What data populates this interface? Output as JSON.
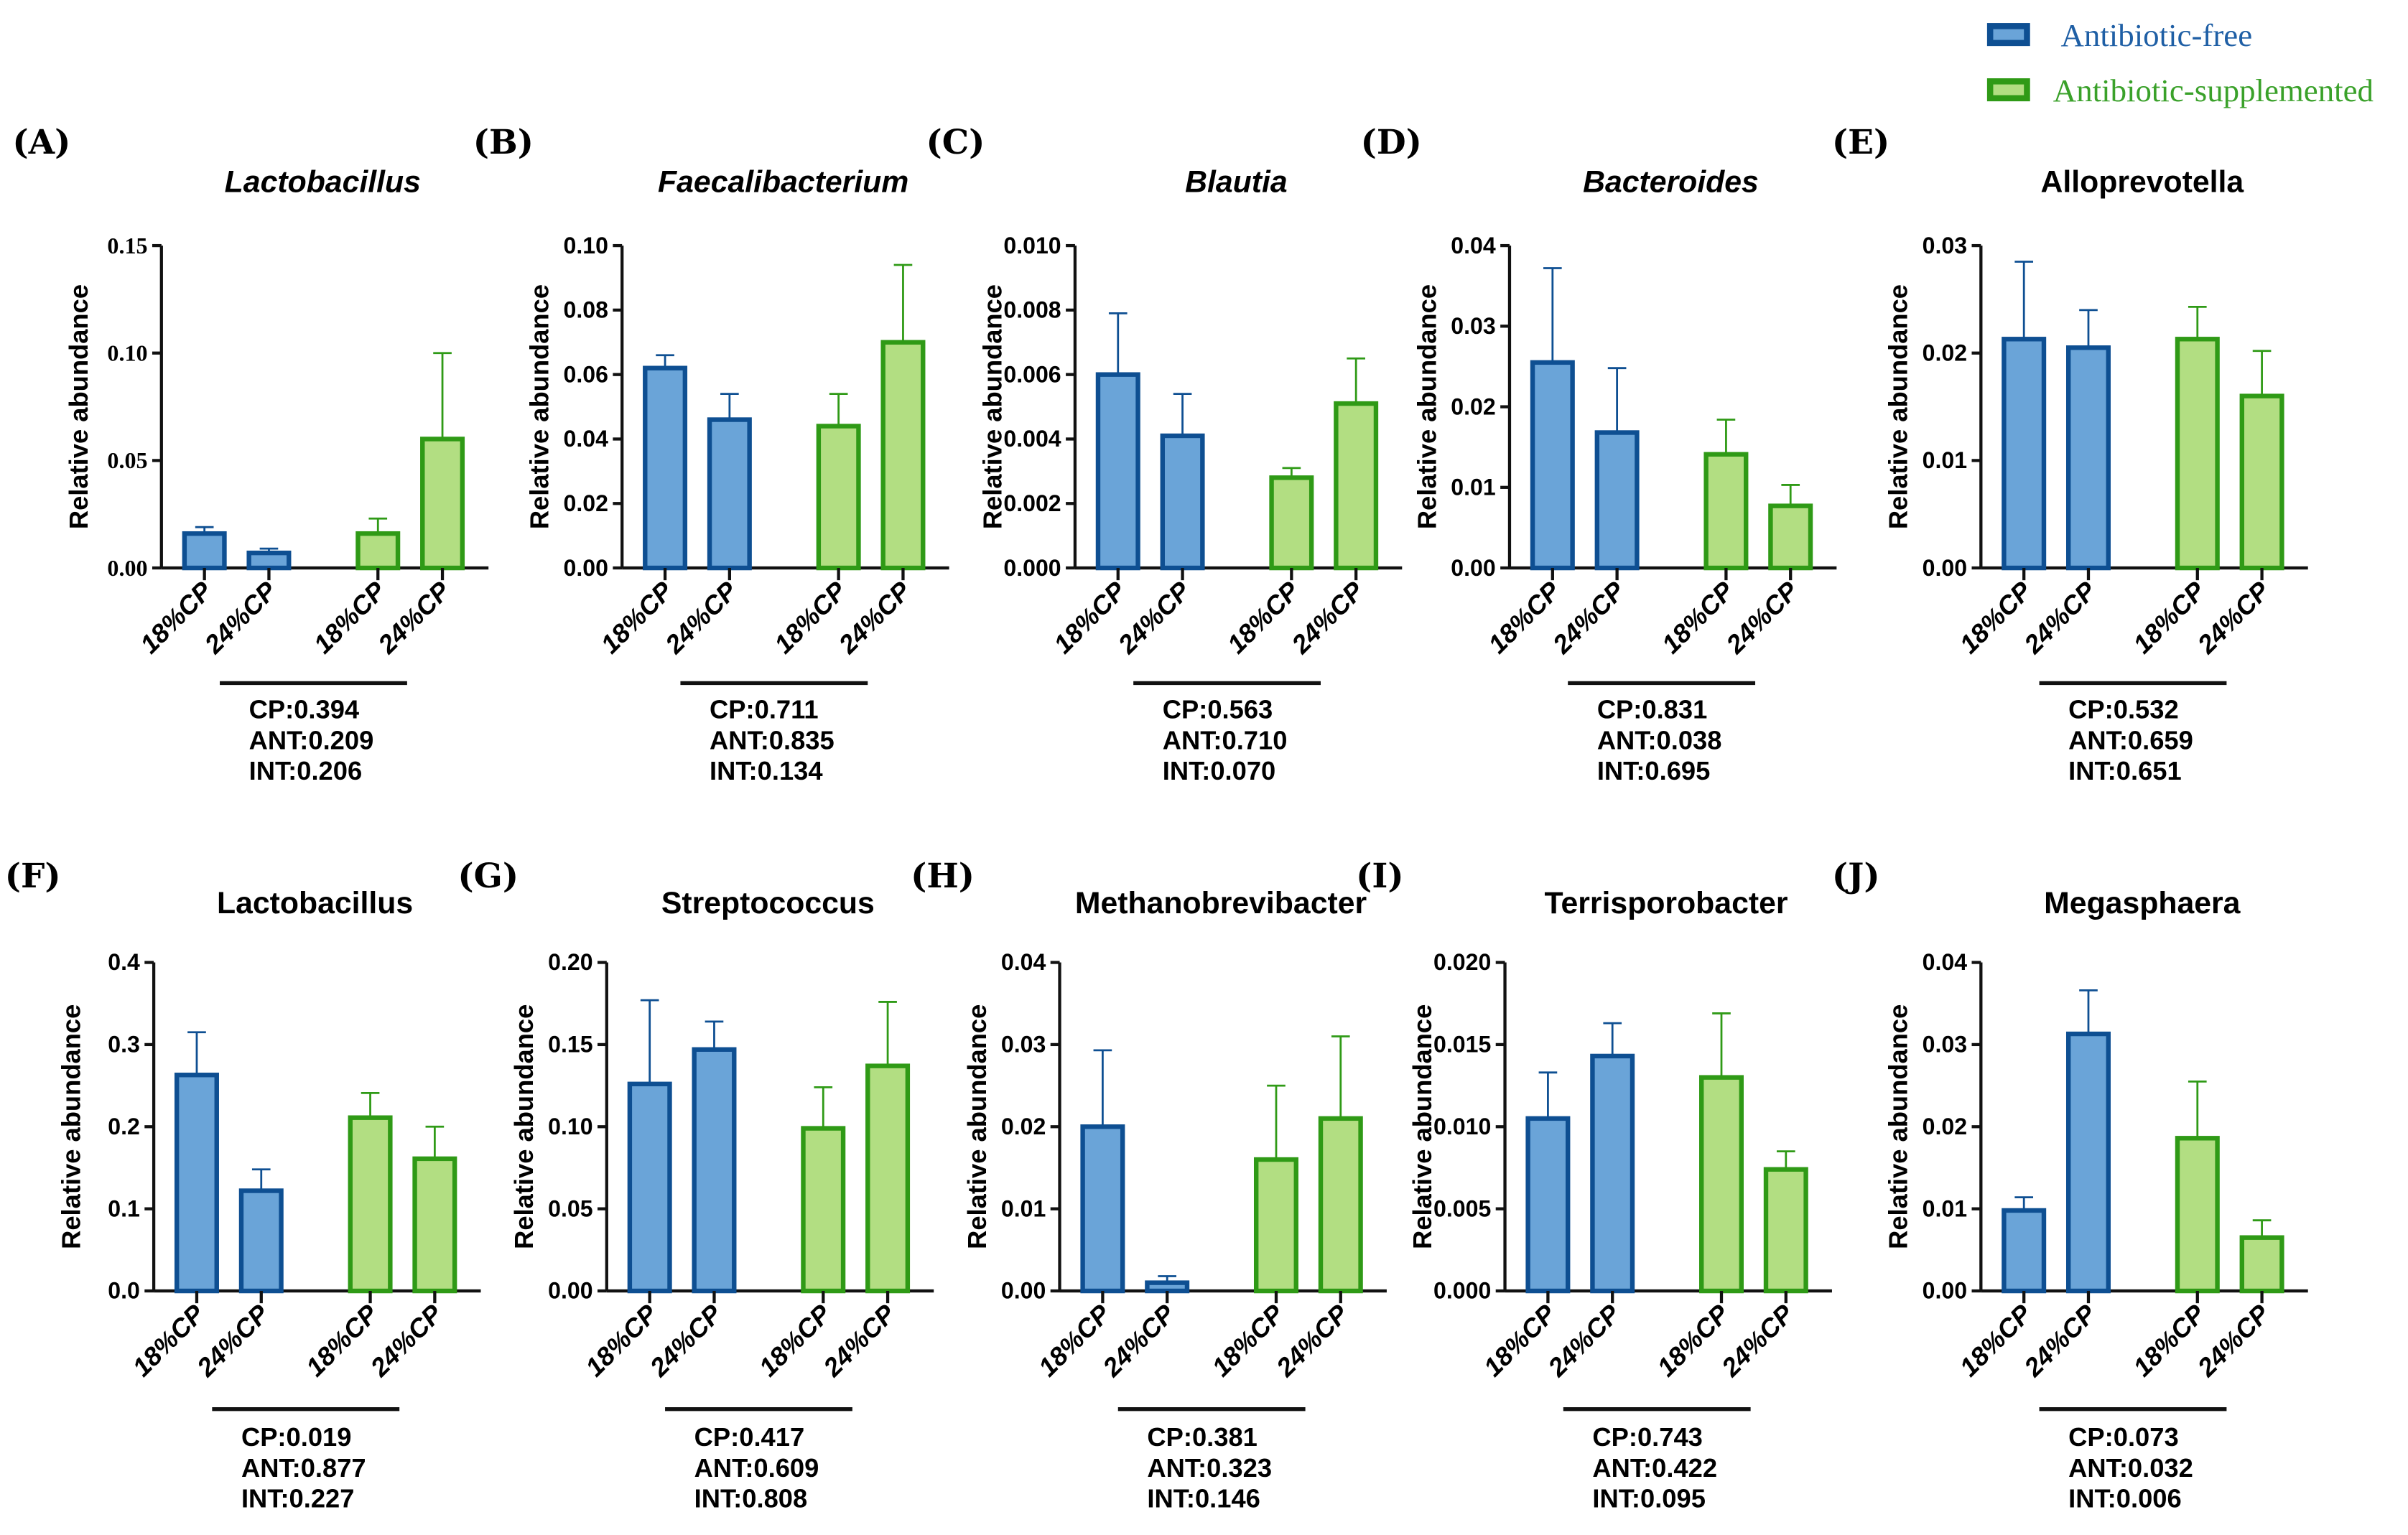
{
  "legend": [
    {
      "label": "Antibiotic-free",
      "fill": "#6aa4d8",
      "stroke": "#0e4f92",
      "text_color": "#1f5fa5"
    },
    {
      "label": "Antibiotic-supplemented",
      "fill": "#b2de82",
      "stroke": "#2f9a16",
      "text_color": "#3aa12a"
    }
  ],
  "chart_data": [
    {
      "panel": "(A)",
      "type": "bar",
      "title": "Lactobacillus",
      "italic": true,
      "ylabel": "Relative abundance",
      "categories": [
        "18%CP",
        "24%CP",
        "18%CP",
        "24%CP"
      ],
      "groups": [
        "Antibiotic-free",
        "Antibiotic-free",
        "Antibiotic-supplemented",
        "Antibiotic-supplemented"
      ],
      "values": [
        0.016,
        0.007,
        0.016,
        0.06
      ],
      "error_top": [
        0.019,
        0.009,
        0.023,
        0.1
      ],
      "ylim": [
        0,
        0.15
      ],
      "yticks": [
        "0.00",
        "0.05",
        "0.10",
        "0.15"
      ],
      "stats": [
        "CP:0.394",
        "ANT:0.209",
        "INT:0.206"
      ]
    },
    {
      "panel": "(B)",
      "type": "bar",
      "title": "Faecalibacterium",
      "italic": true,
      "ylabel": "Relative abundance",
      "categories": [
        "18%CP",
        "24%CP",
        "18%CP",
        "24%CP"
      ],
      "groups": [
        "Antibiotic-free",
        "Antibiotic-free",
        "Antibiotic-supplemented",
        "Antibiotic-supplemented"
      ],
      "values": [
        0.062,
        0.046,
        0.044,
        0.07
      ],
      "error_top": [
        0.066,
        0.054,
        0.054,
        0.094
      ],
      "ylim": [
        0,
        0.1
      ],
      "yticks": [
        "0.00",
        "0.02",
        "0.04",
        "0.06",
        "0.08",
        "0.10"
      ],
      "stats": [
        "CP:0.711",
        "ANT:0.835",
        "INT:0.134"
      ]
    },
    {
      "panel": "(C)",
      "type": "bar",
      "title": "Blautia",
      "italic": true,
      "ylabel": "Relative abundance",
      "categories": [
        "18%CP",
        "24%CP",
        "18%CP",
        "24%CP"
      ],
      "groups": [
        "Antibiotic-free",
        "Antibiotic-free",
        "Antibiotic-supplemented",
        "Antibiotic-supplemented"
      ],
      "values": [
        0.006,
        0.0041,
        0.0028,
        0.0051
      ],
      "error_top": [
        0.0079,
        0.0054,
        0.0031,
        0.0065
      ],
      "ylim": [
        0,
        0.01
      ],
      "yticks": [
        "0.000",
        "0.002",
        "0.004",
        "0.006",
        "0.008",
        "0.010"
      ],
      "stats": [
        "CP:0.563",
        "ANT:0.710",
        "INT:0.070"
      ]
    },
    {
      "panel": "(D)",
      "type": "bar",
      "title": "Bacteroides",
      "italic": true,
      "ylabel": "Relative abundance",
      "categories": [
        "18%CP",
        "24%CP",
        "18%CP",
        "24%CP"
      ],
      "groups": [
        "Antibiotic-free",
        "Antibiotic-free",
        "Antibiotic-supplemented",
        "Antibiotic-supplemented"
      ],
      "values": [
        0.0255,
        0.0168,
        0.0141,
        0.0077
      ],
      "error_top": [
        0.0372,
        0.0248,
        0.0184,
        0.0103
      ],
      "ylim": [
        0,
        0.04
      ],
      "yticks": [
        "0.00",
        "0.01",
        "0.02",
        "0.03",
        "0.04"
      ],
      "stats": [
        "CP:0.831",
        "ANT:0.038",
        "INT:0.695"
      ]
    },
    {
      "panel": "(E)",
      "type": "bar",
      "title": "Alloprevotella",
      "italic": false,
      "ylabel": "Relative abundance",
      "categories": [
        "18%CP",
        "24%CP",
        "18%CP",
        "24%CP"
      ],
      "groups": [
        "Antibiotic-free",
        "Antibiotic-free",
        "Antibiotic-supplemented",
        "Antibiotic-supplemented"
      ],
      "values": [
        0.0213,
        0.0205,
        0.0213,
        0.016
      ],
      "error_top": [
        0.0285,
        0.024,
        0.0243,
        0.0202
      ],
      "ylim": [
        0,
        0.03
      ],
      "yticks": [
        "0.00",
        "0.01",
        "0.02",
        "0.03"
      ],
      "stats": [
        "CP:0.532",
        "ANT:0.659",
        "INT:0.651"
      ]
    },
    {
      "panel": "(F)",
      "type": "bar",
      "title": "Lactobacillus",
      "italic": false,
      "ylabel": "Relative abundance",
      "categories": [
        "18%CP",
        "24%CP",
        "18%CP",
        "24%CP"
      ],
      "groups": [
        "Antibiotic-free",
        "Antibiotic-free",
        "Antibiotic-supplemented",
        "Antibiotic-supplemented"
      ],
      "values": [
        0.263,
        0.122,
        0.211,
        0.161
      ],
      "error_top": [
        0.315,
        0.148,
        0.241,
        0.2
      ],
      "ylim": [
        0,
        0.4
      ],
      "yticks": [
        "0.0",
        "0.1",
        "0.2",
        "0.3",
        "0.4"
      ],
      "stats": [
        "CP:0.019",
        "ANT:0.877",
        "INT:0.227"
      ]
    },
    {
      "panel": "(G)",
      "type": "bar",
      "title": "Streptococcus",
      "italic": false,
      "ylabel": "Relative abundance",
      "categories": [
        "18%CP",
        "24%CP",
        "18%CP",
        "24%CP"
      ],
      "groups": [
        "Antibiotic-free",
        "Antibiotic-free",
        "Antibiotic-supplemented",
        "Antibiotic-supplemented"
      ],
      "values": [
        0.126,
        0.147,
        0.099,
        0.137
      ],
      "error_top": [
        0.177,
        0.164,
        0.124,
        0.176
      ],
      "ylim": [
        0,
        0.2
      ],
      "yticks": [
        "0.00",
        "0.05",
        "0.10",
        "0.15",
        "0.20"
      ],
      "stats": [
        "CP:0.417",
        "ANT:0.609",
        "INT:0.808"
      ]
    },
    {
      "panel": "(H)",
      "type": "bar",
      "title": "Methanobrevibacter",
      "italic": false,
      "ylabel": "Relative abundance",
      "categories": [
        "18%CP",
        "24%CP",
        "18%CP",
        "24%CP"
      ],
      "groups": [
        "Antibiotic-free",
        "Antibiotic-free",
        "Antibiotic-supplemented",
        "Antibiotic-supplemented"
      ],
      "values": [
        0.02,
        0.001,
        0.016,
        0.021
      ],
      "error_top": [
        0.0293,
        0.0018,
        0.025,
        0.031
      ],
      "ylim": [
        0,
        0.04
      ],
      "yticks": [
        "0.00",
        "0.01",
        "0.02",
        "0.03",
        "0.04"
      ],
      "stats": [
        "CP:0.381",
        "ANT:0.323",
        "INT:0.146"
      ]
    },
    {
      "panel": "(I)",
      "type": "bar",
      "title": "Terrisporobacter",
      "italic": false,
      "ylabel": "Relative abundance",
      "categories": [
        "18%CP",
        "24%CP",
        "18%CP",
        "24%CP"
      ],
      "groups": [
        "Antibiotic-free",
        "Antibiotic-free",
        "Antibiotic-supplemented",
        "Antibiotic-supplemented"
      ],
      "values": [
        0.0105,
        0.0143,
        0.013,
        0.0074
      ],
      "error_top": [
        0.0133,
        0.0163,
        0.0169,
        0.0085
      ],
      "ylim": [
        0,
        0.02
      ],
      "yticks": [
        "0.000",
        "0.005",
        "0.010",
        "0.015",
        "0.020"
      ],
      "stats": [
        "CP:0.743",
        "ANT:0.422",
        "INT:0.095"
      ]
    },
    {
      "panel": "(J)",
      "type": "bar",
      "title": "Megasphaera",
      "italic": false,
      "ylabel": "Relative abundance",
      "categories": [
        "18%CP",
        "24%CP",
        "18%CP",
        "24%CP"
      ],
      "groups": [
        "Antibiotic-free",
        "Antibiotic-free",
        "Antibiotic-supplemented",
        "Antibiotic-supplemented"
      ],
      "values": [
        0.0098,
        0.0313,
        0.0186,
        0.0065
      ],
      "error_top": [
        0.0114,
        0.0366,
        0.0255,
        0.0086
      ],
      "ylim": [
        0,
        0.04
      ],
      "yticks": [
        "0.00",
        "0.01",
        "0.02",
        "0.03",
        "0.04"
      ],
      "stats": [
        "CP:0.073",
        "ANT:0.032",
        "INT:0.006"
      ]
    }
  ]
}
